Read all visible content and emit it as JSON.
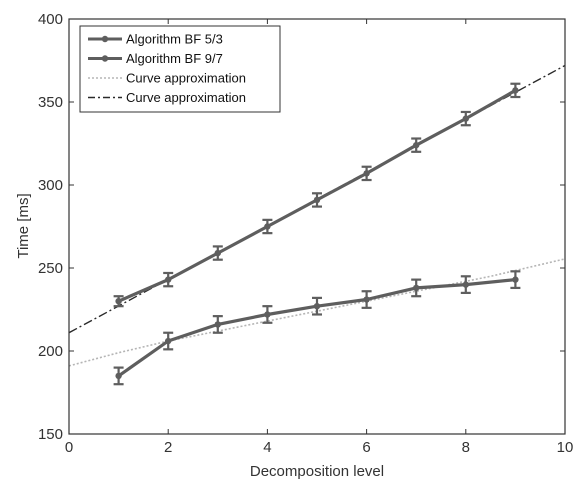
{
  "chart_data": {
    "type": "line",
    "xlabel": "Decomposition level",
    "ylabel": "Time [ms]",
    "xlim": [
      0,
      10
    ],
    "ylim": [
      150,
      400
    ],
    "x_ticks": [
      0,
      2,
      4,
      6,
      8,
      10
    ],
    "y_ticks": [
      150,
      200,
      250,
      300,
      350,
      400
    ],
    "grid": false,
    "legend_position": "top-left",
    "x": [
      1,
      2,
      3,
      4,
      5,
      6,
      7,
      8,
      9
    ],
    "series": [
      {
        "name": "Algorithm BF 5/3",
        "kind": "errorbar",
        "color": "#5e5e5e",
        "values": [
          185,
          206,
          216,
          222,
          227,
          231,
          238,
          240,
          243
        ],
        "errors": [
          5,
          5,
          5,
          5,
          5,
          5,
          5,
          5,
          5
        ]
      },
      {
        "name": "Algorithm BF 9/7",
        "kind": "errorbar",
        "color": "#5e5e5e",
        "values": [
          230,
          243,
          259,
          275,
          291,
          307,
          324,
          340,
          357
        ],
        "errors": [
          3,
          4,
          4,
          4,
          4,
          4,
          4,
          4,
          4
        ]
      },
      {
        "name": "Curve approximation",
        "kind": "fit",
        "style": "dotted",
        "color": "#b5b5b5",
        "x": [
          0,
          0.5,
          1,
          1.5,
          2,
          2.5,
          3,
          3.5,
          4,
          4.5,
          5,
          5.5,
          6,
          6.5,
          7,
          7.5,
          8,
          8.5,
          9,
          9.5,
          10
        ],
        "values": [
          191,
          195,
          199,
          202.5,
          206,
          209,
          212,
          215,
          218,
          221,
          224,
          227,
          230,
          233,
          236,
          239,
          242,
          245,
          248.5,
          252,
          255.5
        ]
      },
      {
        "name": "Curve approximation",
        "kind": "fit",
        "style": "dashdot",
        "color": "#2a2a2a",
        "x": [
          0,
          10
        ],
        "values": [
          211,
          372
        ]
      }
    ]
  }
}
